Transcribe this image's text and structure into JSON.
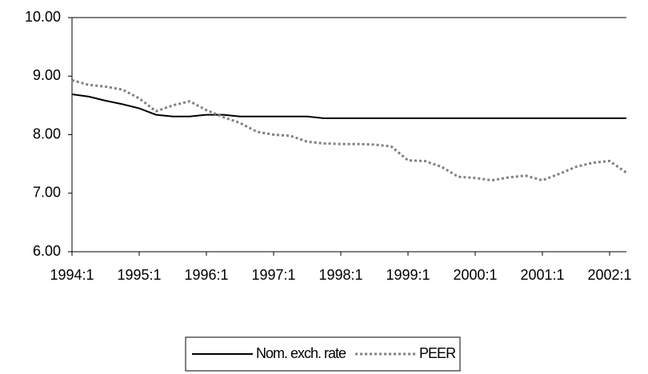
{
  "chart_data": {
    "type": "line",
    "categories": [
      "1994:1",
      null,
      null,
      null,
      "1995:1",
      null,
      null,
      null,
      "1996:1",
      null,
      null,
      null,
      "1997:1",
      null,
      null,
      null,
      "1998:1",
      null,
      null,
      null,
      "1999:1",
      null,
      null,
      null,
      "2000:1",
      null,
      null,
      null,
      "2001:1",
      null,
      null,
      null,
      "2002:1",
      null
    ],
    "series": [
      {
        "name": "Nom. exch. rate",
        "color": "#000000",
        "dash": "solid",
        "values": [
          8.69,
          8.65,
          8.58,
          8.52,
          8.45,
          8.34,
          8.31,
          8.31,
          8.34,
          8.34,
          8.31,
          8.31,
          8.31,
          8.31,
          8.31,
          8.28,
          8.28,
          8.28,
          8.28,
          8.28,
          8.28,
          8.28,
          8.28,
          8.28,
          8.28,
          8.28,
          8.28,
          8.28,
          8.28,
          8.28,
          8.28,
          8.28,
          8.28,
          8.28
        ]
      },
      {
        "name": "PEER",
        "color": "#808080",
        "dash": "dotted",
        "values": [
          8.93,
          8.85,
          8.82,
          8.77,
          8.62,
          8.4,
          8.5,
          8.57,
          8.42,
          8.3,
          8.2,
          8.05,
          8.0,
          7.98,
          7.88,
          7.85,
          7.84,
          7.84,
          7.83,
          7.8,
          7.56,
          7.55,
          7.45,
          7.28,
          7.26,
          7.22,
          7.27,
          7.3,
          7.22,
          7.33,
          7.45,
          7.52,
          7.55,
          7.35
        ]
      }
    ],
    "ylim": [
      6,
      10
    ],
    "yticks": [
      {
        "value": 6,
        "label": "6.00"
      },
      {
        "value": 7,
        "label": "7.00"
      },
      {
        "value": 8,
        "label": "8.00"
      },
      {
        "value": 9,
        "label": "9.00"
      },
      {
        "value": 10,
        "label": "10.00"
      }
    ],
    "grid": false,
    "legend": "bottom"
  }
}
